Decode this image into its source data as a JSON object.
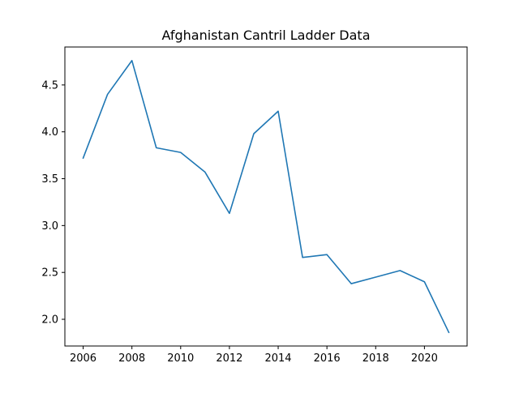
{
  "chart_data": {
    "type": "line",
    "title": "Afghanistan Cantril Ladder Data",
    "xlabel": "",
    "ylabel": "",
    "x": [
      2006,
      2007,
      2008,
      2009,
      2010,
      2011,
      2012,
      2013,
      2014,
      2015,
      2016,
      2017,
      2018,
      2019,
      2020,
      2021
    ],
    "series": [
      {
        "name": "",
        "values": [
          3.72,
          4.4,
          4.76,
          3.83,
          3.78,
          3.57,
          3.13,
          3.98,
          4.22,
          2.66,
          2.69,
          2.38,
          2.45,
          2.52,
          2.4,
          1.86
        ]
      }
    ],
    "xlim": [
      2005.25,
      2021.75
    ],
    "ylim": [
      1.715,
      4.905
    ],
    "xticks": [
      2006,
      2008,
      2010,
      2012,
      2014,
      2016,
      2018,
      2020
    ],
    "yticks": [
      2.0,
      2.5,
      3.0,
      3.5,
      4.0,
      4.5
    ],
    "ytick_labels": [
      "2.0",
      "2.5",
      "3.0",
      "3.5",
      "4.0",
      "4.5"
    ],
    "grid": false,
    "legend": "none",
    "colors": {
      "line": "#1f77b4",
      "axes": "#000000",
      "background": "#ffffff"
    }
  }
}
